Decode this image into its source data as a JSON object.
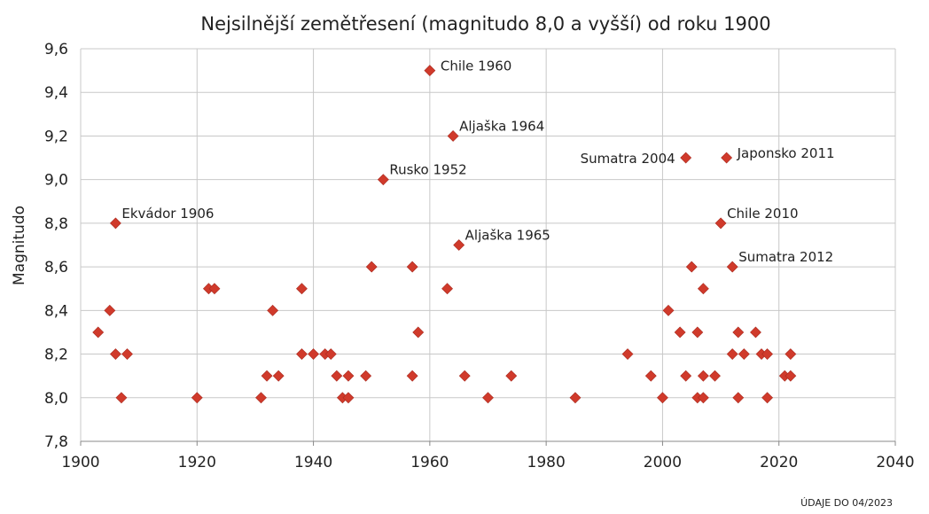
{
  "chart_data": {
    "type": "scatter",
    "title": "Nejsilnější zemětřesení (magnitudo 8,0 a vyšší) od roku 1900",
    "xlabel": "",
    "ylabel": "Magnitudo",
    "xlim": [
      1900,
      2040
    ],
    "ylim": [
      7.8,
      9.6
    ],
    "x_ticks": [
      1900,
      1920,
      1940,
      1960,
      1980,
      2000,
      2020,
      2040
    ],
    "y_ticks": [
      7.8,
      8.0,
      8.2,
      8.4,
      8.6,
      8.8,
      9.0,
      9.2,
      9.4,
      9.6
    ],
    "x_tick_labels": [
      "1900",
      "1920",
      "1940",
      "1960",
      "1980",
      "2000",
      "2020",
      "2040"
    ],
    "y_tick_labels": [
      "7,8",
      "8,0",
      "8,2",
      "8,4",
      "8,6",
      "8,8",
      "9,0",
      "9,2",
      "9,4",
      "9,6"
    ],
    "grid": true,
    "legend": "none",
    "marker_color": "#d03a2b",
    "footnote": "ÚDAJE DO 04/2023",
    "points": [
      [
        1903,
        8.3
      ],
      [
        1905,
        8.4
      ],
      [
        1906,
        8.8
      ],
      [
        1906,
        8.2
      ],
      [
        1907,
        8.0
      ],
      [
        1908,
        8.2
      ],
      [
        1920,
        8.0
      ],
      [
        1922,
        8.5
      ],
      [
        1923,
        8.5
      ],
      [
        1931,
        8.0
      ],
      [
        1932,
        8.1
      ],
      [
        1933,
        8.4
      ],
      [
        1934,
        8.1
      ],
      [
        1938,
        8.5
      ],
      [
        1938,
        8.2
      ],
      [
        1940,
        8.2
      ],
      [
        1942,
        8.2
      ],
      [
        1943,
        8.2
      ],
      [
        1944,
        8.1
      ],
      [
        1945,
        8.0
      ],
      [
        1946,
        8.1
      ],
      [
        1946,
        8.0
      ],
      [
        1949,
        8.1
      ],
      [
        1950,
        8.6
      ],
      [
        1952,
        9.0
      ],
      [
        1957,
        8.6
      ],
      [
        1957,
        8.1
      ],
      [
        1958,
        8.3
      ],
      [
        1960,
        9.5
      ],
      [
        1963,
        8.5
      ],
      [
        1964,
        9.2
      ],
      [
        1965,
        8.7
      ],
      [
        1966,
        8.1
      ],
      [
        1970,
        8.0
      ],
      [
        1974,
        8.1
      ],
      [
        1985,
        8.0
      ],
      [
        1994,
        8.2
      ],
      [
        1998,
        8.1
      ],
      [
        2000,
        8.0
      ],
      [
        2001,
        8.4
      ],
      [
        2003,
        8.3
      ],
      [
        2004,
        9.1
      ],
      [
        2004,
        8.1
      ],
      [
        2005,
        8.6
      ],
      [
        2006,
        8.3
      ],
      [
        2006,
        8.0
      ],
      [
        2007,
        8.5
      ],
      [
        2007,
        8.1
      ],
      [
        2007,
        8.0
      ],
      [
        2009,
        8.1
      ],
      [
        2010,
        8.8
      ],
      [
        2011,
        9.1
      ],
      [
        2012,
        8.6
      ],
      [
        2012,
        8.2
      ],
      [
        2013,
        8.3
      ],
      [
        2013,
        8.0
      ],
      [
        2014,
        8.2
      ],
      [
        2016,
        8.3
      ],
      [
        2017,
        8.2
      ],
      [
        2018,
        8.2
      ],
      [
        2018,
        8.0
      ],
      [
        2021,
        8.1
      ],
      [
        2022,
        8.1
      ],
      [
        2022,
        8.2
      ]
    ],
    "annotations": [
      {
        "label": "Chile 1960",
        "x": 1960,
        "y": 9.5,
        "side": "right"
      },
      {
        "label": "Aljaška 1964",
        "x": 1964,
        "y": 9.2,
        "side": "right-up"
      },
      {
        "label": "Rusko 1952",
        "x": 1952,
        "y": 9.0,
        "side": "right-up"
      },
      {
        "label": "Ekvádor 1906",
        "x": 1906,
        "y": 8.8,
        "side": "right-up"
      },
      {
        "label": "Aljaška 1965",
        "x": 1965,
        "y": 8.7,
        "side": "right-up"
      },
      {
        "label": "Sumatra 2004",
        "x": 2004,
        "y": 9.1,
        "side": "left"
      },
      {
        "label": "Japonsko 2011",
        "x": 2011,
        "y": 9.1,
        "side": "right"
      },
      {
        "label": "Chile 2010",
        "x": 2010,
        "y": 8.8,
        "side": "right-up"
      },
      {
        "label": "Sumatra 2012",
        "x": 2012,
        "y": 8.6,
        "side": "right-up"
      }
    ]
  }
}
